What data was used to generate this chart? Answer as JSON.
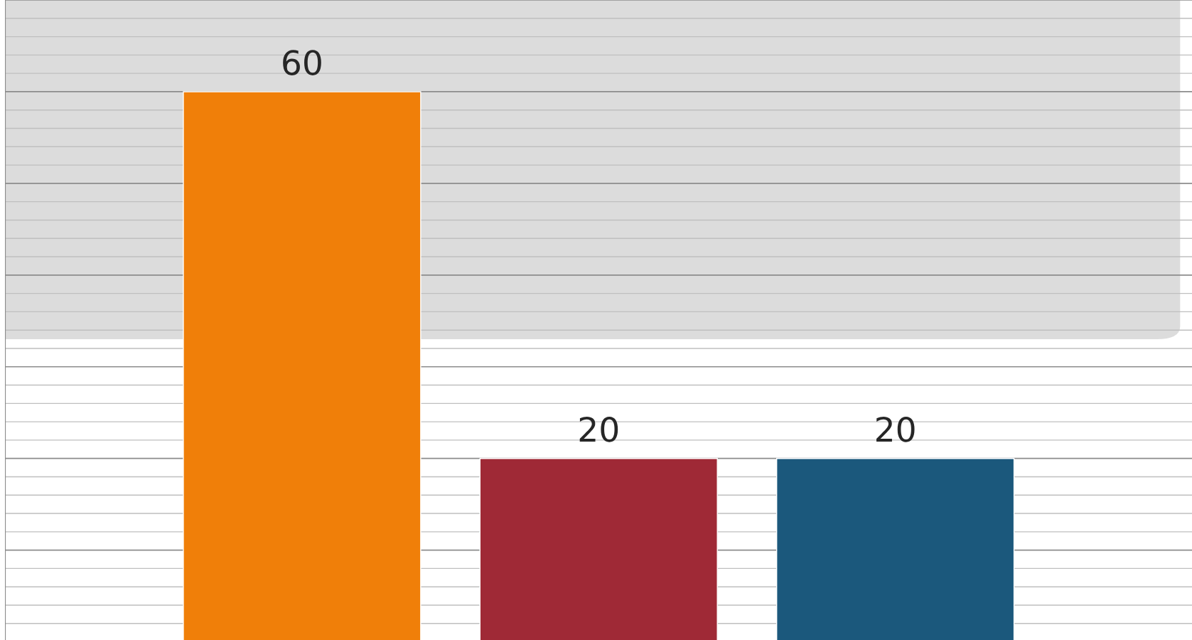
{
  "chart_data": {
    "type": "bar",
    "categories": [
      null,
      null,
      null
    ],
    "values": [
      60,
      20,
      20
    ],
    "colors": [
      "#f07f09",
      "#9f2936",
      "#1b587c"
    ],
    "ylim": [
      0.2,
      70
    ],
    "data_labels": true,
    "grid": "y"
  }
}
